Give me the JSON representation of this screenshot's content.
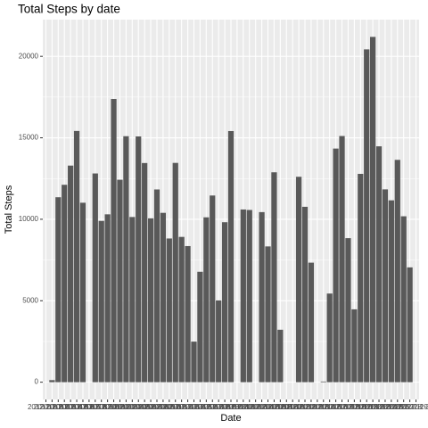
{
  "chart_data": {
    "type": "bar",
    "title": "Total Steps by date",
    "x_label": "Date",
    "y_label": "Total Steps",
    "categories": [
      "2012-10-01",
      "2012-10-02",
      "2012-10-03",
      "2012-10-04",
      "2012-10-05",
      "2012-10-06",
      "2012-10-07",
      "2012-10-08",
      "2012-10-09",
      "2012-10-10",
      "2012-10-11",
      "2012-10-12",
      "2012-10-13",
      "2012-10-14",
      "2012-10-15",
      "2012-10-16",
      "2012-10-17",
      "2012-10-18",
      "2012-10-19",
      "2012-10-20",
      "2012-10-21",
      "2012-10-22",
      "2012-10-23",
      "2012-10-24",
      "2012-10-25",
      "2012-10-26",
      "2012-10-27",
      "2012-10-28",
      "2012-10-29",
      "2012-10-30",
      "2012-10-31",
      "2012-11-01",
      "2012-11-02",
      "2012-11-03",
      "2012-11-04",
      "2012-11-05",
      "2012-11-06",
      "2012-11-07",
      "2012-11-08",
      "2012-11-09",
      "2012-11-10",
      "2012-11-11",
      "2012-11-12",
      "2012-11-13",
      "2012-11-14",
      "2012-11-15",
      "2012-11-16",
      "2012-11-17",
      "2012-11-18",
      "2012-11-19",
      "2012-11-20",
      "2012-11-21",
      "2012-11-22",
      "2012-11-23",
      "2012-11-24",
      "2012-11-25",
      "2012-11-26",
      "2012-11-27",
      "2012-11-28",
      "2012-11-29",
      "2012-11-30"
    ],
    "values": [
      0,
      126,
      11352,
      12116,
      13294,
      15420,
      11015,
      0,
      12811,
      9900,
      10304,
      17382,
      12426,
      15098,
      10139,
      15084,
      13452,
      10056,
      11829,
      10395,
      8821,
      13460,
      8918,
      8355,
      2492,
      6778,
      10119,
      11458,
      5018,
      9819,
      15414,
      0,
      10600,
      10571,
      0,
      10439,
      8334,
      12883,
      3219,
      0,
      0,
      12608,
      10765,
      7336,
      0,
      41,
      5441,
      14339,
      15110,
      8841,
      4472,
      12787,
      20427,
      21194,
      14478,
      11834,
      11162,
      13646,
      10183,
      7047,
      0
    ],
    "color": "#595959",
    "ylim": [
      -1060,
      22254
    ],
    "yticks": [
      0,
      5000,
      10000,
      15000,
      20000
    ],
    "grid": true
  }
}
